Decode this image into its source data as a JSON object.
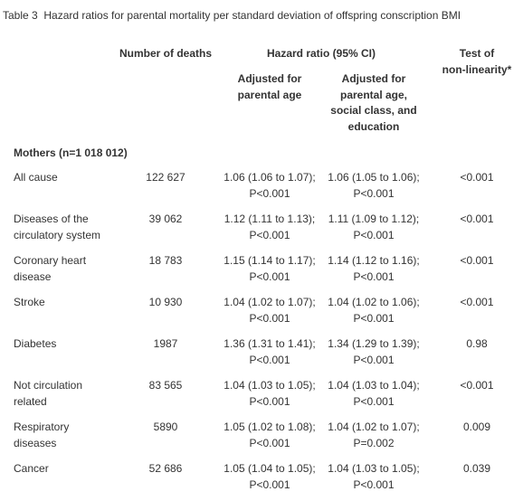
{
  "caption": "Table 3  Hazard ratios for parental mortality per standard deviation of offspring conscription BMI",
  "header": {
    "deaths": "Number of deaths",
    "hazard": "Hazard ratio (95% CI)",
    "adjusted_age": "Adjusted for parental age",
    "adjusted_all": "Adjusted for parental age, social class, and education",
    "nonlinearity": [
      "Test of",
      "non-linearity*"
    ]
  },
  "section": "Mothers (n=1 018 012)",
  "rows": [
    [
      "All cause",
      "122 627",
      "1.06 (1.06 to 1.07); P<0.001",
      "1.06 (1.05 to 1.06); P<0.001",
      "<0.001"
    ],
    [
      "Diseases of the circulatory system",
      "39 062",
      "1.12 (1.11 to 1.13); P<0.001",
      "1.11 (1.09 to 1.12); P<0.001",
      "<0.001"
    ],
    [
      "Coronary heart disease",
      "18 783",
      "1.15 (1.14 to 1.17); P<0.001",
      "1.14 (1.12 to 1.16); P<0.001",
      "<0.001"
    ],
    [
      "Stroke",
      "10 930",
      "1.04 (1.02 to 1.07); P<0.001",
      "1.04 (1.02 to 1.06); P<0.001",
      "<0.001"
    ],
    [
      "Diabetes",
      "1987",
      "1.36 (1.31 to 1.41); P<0.001",
      "1.34 (1.29 to 1.39); P<0.001",
      "0.98"
    ],
    [
      "Not circulation related",
      "83 565",
      "1.04 (1.03 to 1.05); P<0.001",
      "1.04 (1.03 to 1.04); P<0.001",
      "<0.001"
    ],
    [
      "Respiratory diseases",
      "5890",
      "1.05 (1.02 to 1.08); P<0.001",
      "1.04 (1.02 to 1.07); P=0.002",
      "0.009"
    ],
    [
      "Cancer",
      "52 686",
      "1.05 (1.04 to 1.05); P<0.001",
      "1.04 (1.03 to 1.05); P<0.001",
      "0.039"
    ]
  ]
}
